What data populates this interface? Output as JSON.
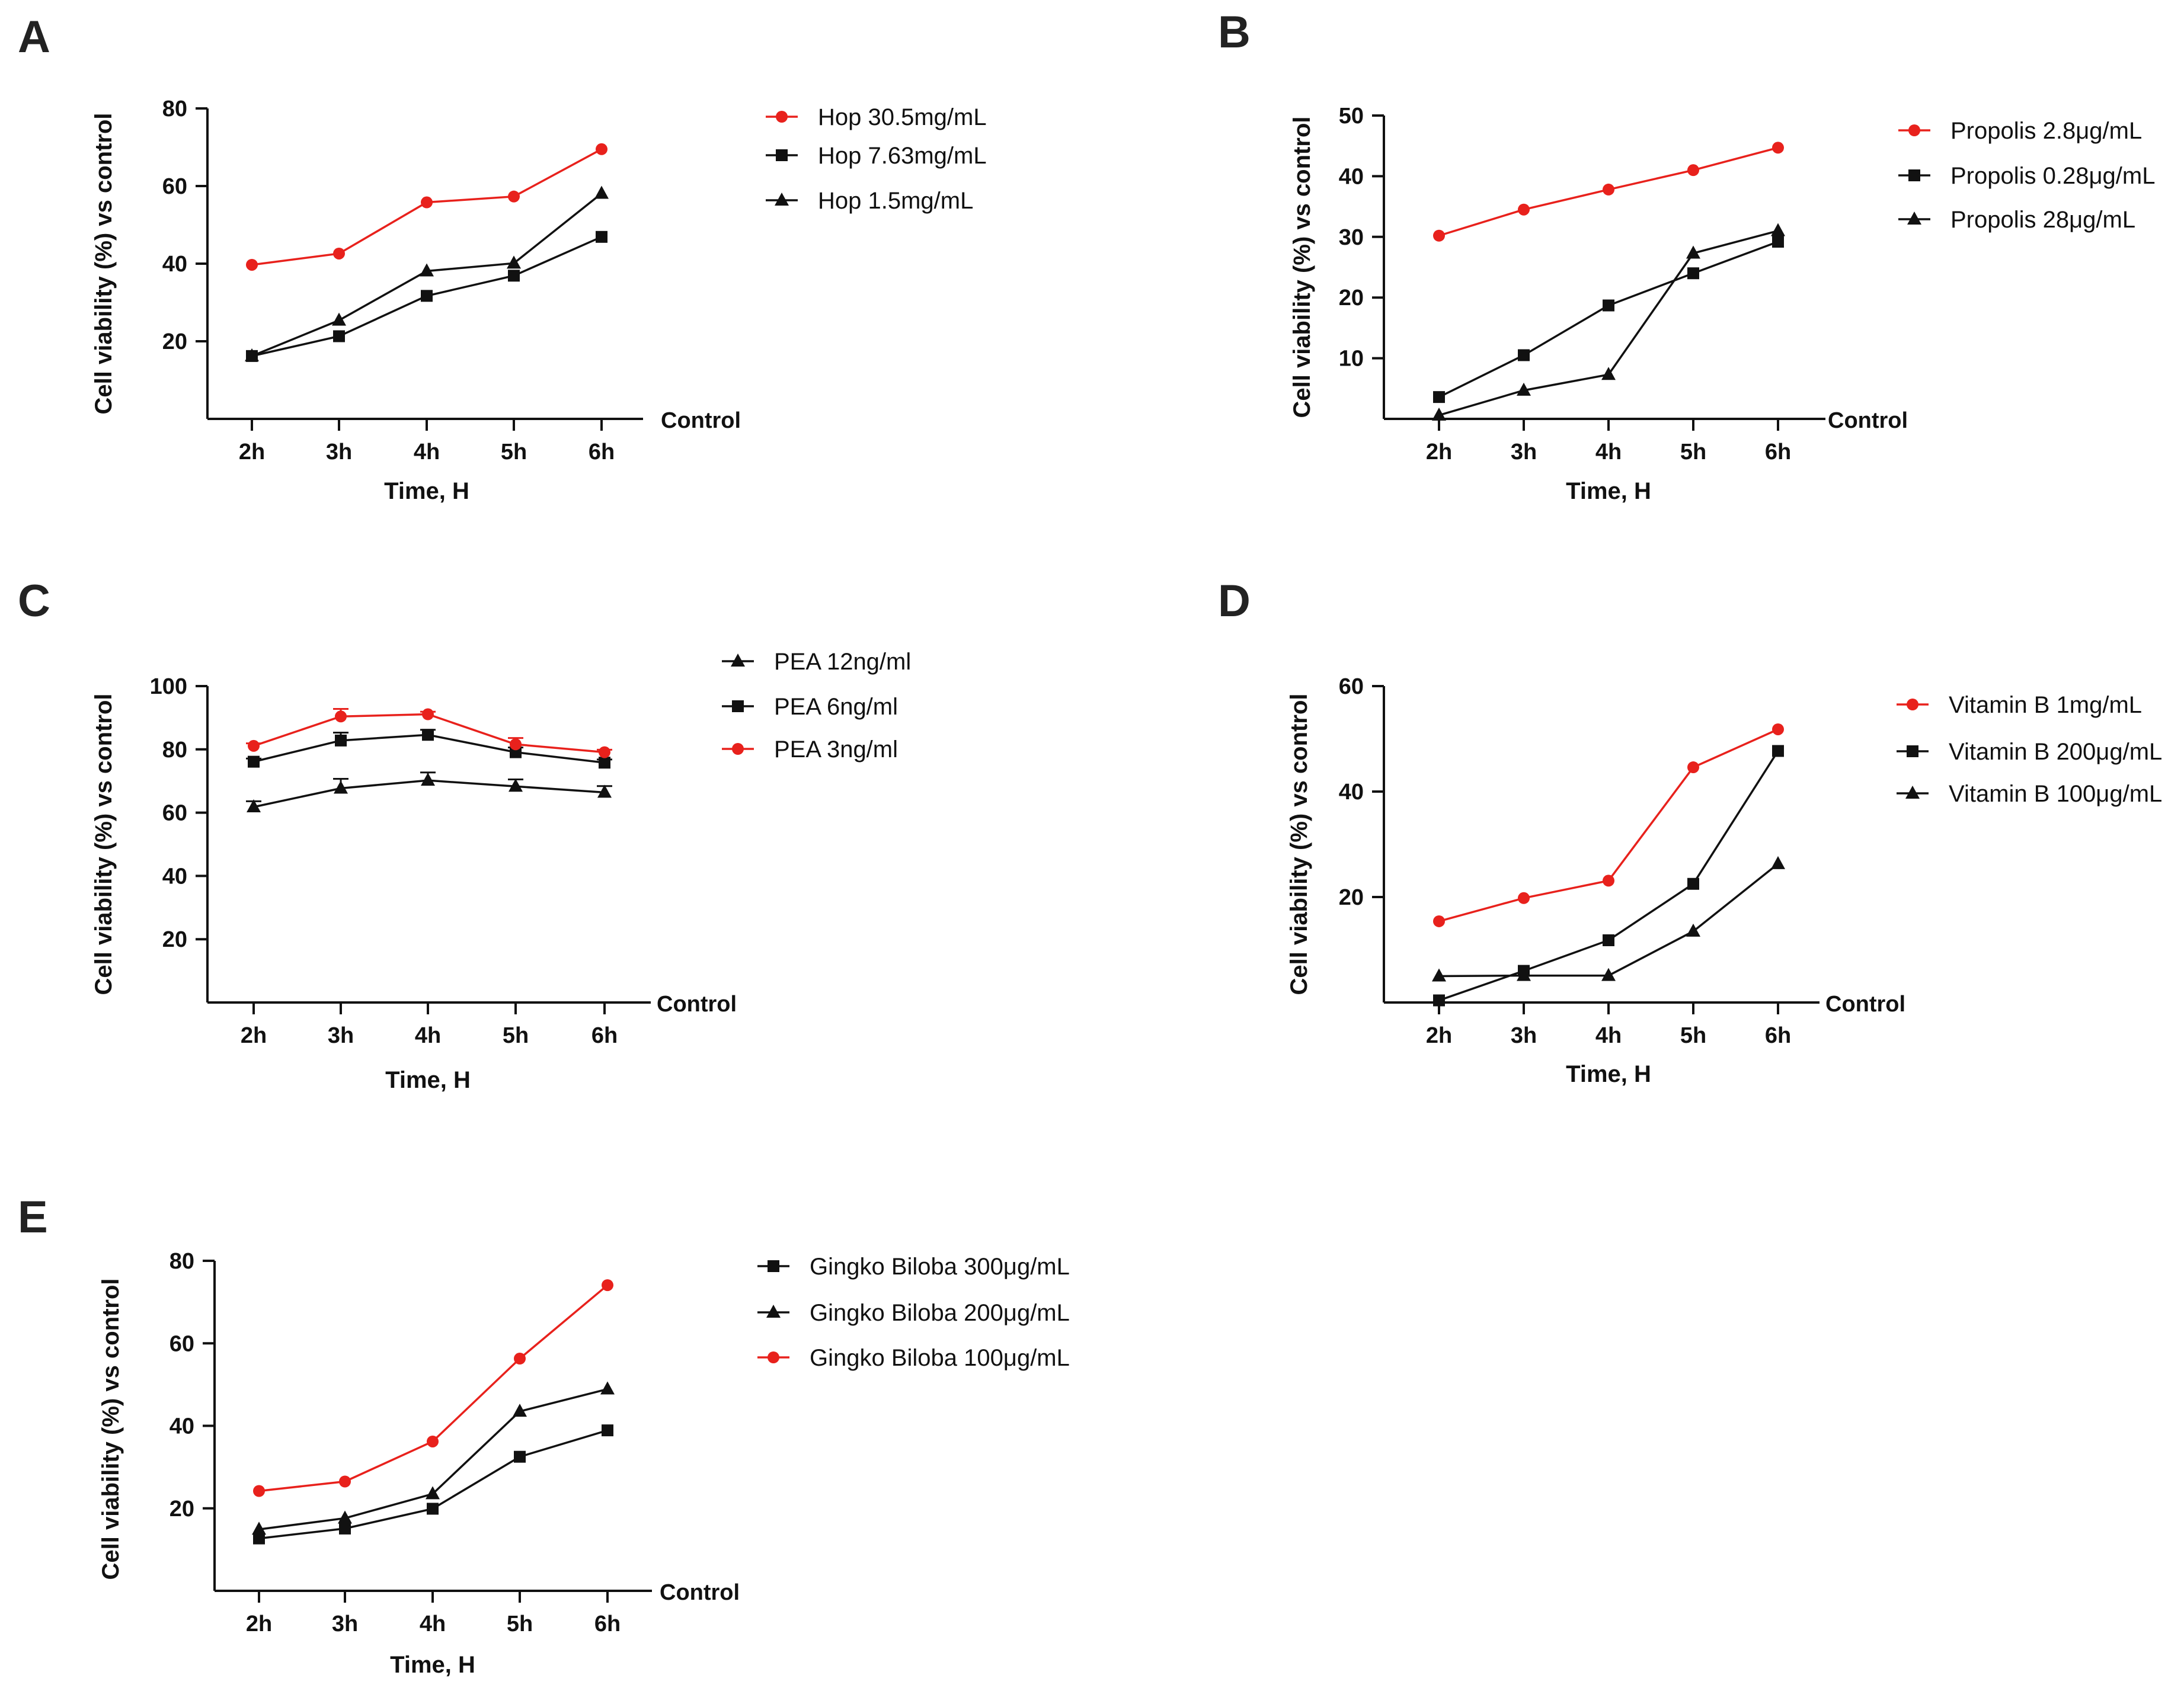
{
  "figure": {
    "panels": [
      "A",
      "B",
      "C",
      "D",
      "E"
    ]
  },
  "chart_data": [
    {
      "panel": "A",
      "type": "line",
      "xlabel": "Time, H",
      "ylabel": "Cell viability (%) vs control",
      "baseline_label": "Control",
      "categories": [
        "2h",
        "3h",
        "4h",
        "5h",
        "6h"
      ],
      "ylim": [
        0,
        80
      ],
      "yticks": [
        20,
        40,
        60,
        80
      ],
      "series": [
        {
          "name": "Hop 30.5mg/mL",
          "marker": "circle",
          "color": "#e8211c",
          "values": [
            39.7,
            42.6,
            55.8,
            57.3,
            69.5
          ]
        },
        {
          "name": "Hop 7.63mg/mL",
          "marker": "square",
          "color": "#111111",
          "values": [
            16.2,
            21.3,
            31.7,
            36.9,
            46.9
          ]
        },
        {
          "name": "Hop 1.5mg/mL",
          "marker": "triangle",
          "color": "#111111",
          "values": [
            16.2,
            25.4,
            38.1,
            40.1,
            58.1
          ]
        }
      ]
    },
    {
      "panel": "B",
      "type": "line",
      "xlabel": "Time, H",
      "ylabel": "Cell viability (%) vs control",
      "baseline_label": "Control",
      "categories": [
        "2h",
        "3h",
        "4h",
        "5h",
        "6h"
      ],
      "ylim": [
        0,
        50
      ],
      "yticks": [
        10,
        20,
        30,
        40,
        50
      ],
      "series": [
        {
          "name": "Propolis 2.8μg/mL",
          "marker": "circle",
          "color": "#e8211c",
          "values": [
            30.2,
            34.5,
            37.8,
            41.0,
            44.7
          ]
        },
        {
          "name": "Propolis 0.28μg/mL",
          "marker": "square",
          "color": "#111111",
          "values": [
            3.6,
            10.5,
            18.7,
            24.0,
            29.2
          ]
        },
        {
          "name": "Propolis 28μg/mL",
          "marker": "triangle",
          "color": "#111111",
          "values": [
            0.6,
            4.7,
            7.3,
            27.3,
            31.0
          ]
        }
      ]
    },
    {
      "panel": "C",
      "type": "line",
      "xlabel": "Time, H",
      "ylabel": "Cell viability (%) vs control",
      "baseline_label": "Control",
      "categories": [
        "2h",
        "3h",
        "4h",
        "5h",
        "6h"
      ],
      "ylim": [
        0,
        100
      ],
      "yticks": [
        20,
        40,
        60,
        80,
        100
      ],
      "series": [
        {
          "name": "PEA 12ng/ml",
          "marker": "triangle",
          "color": "#111111",
          "values": [
            61.8,
            67.7,
            70.2,
            68.3,
            66.4
          ],
          "errors": [
            1.8,
            3.0,
            2.5,
            2.2,
            2.0
          ]
        },
        {
          "name": "PEA  6ng/ml",
          "marker": "square",
          "color": "#111111",
          "values": [
            76.1,
            82.8,
            84.6,
            79.1,
            75.8
          ],
          "errors": [
            1.0,
            2.5,
            1.6,
            1.5,
            1.0
          ]
        },
        {
          "name": "PEA  3ng/ml",
          "marker": "circle",
          "color": "#e8211c",
          "values": [
            81.1,
            90.4,
            91.1,
            81.6,
            79.1
          ],
          "errors": [
            0.8,
            2.4,
            0.8,
            2.0,
            0.8
          ]
        }
      ]
    },
    {
      "panel": "D",
      "type": "line",
      "xlabel": "Time, H",
      "ylabel": "Cell viability (%) vs control",
      "baseline_label": "Control",
      "categories": [
        "2h",
        "3h",
        "4h",
        "5h",
        "6h"
      ],
      "ylim": [
        0,
        60
      ],
      "yticks": [
        20,
        40,
        60
      ],
      "series": [
        {
          "name": "Vitamin B 1mg/mL",
          "marker": "circle",
          "color": "#e8211c",
          "values": [
            15.4,
            19.8,
            23.1,
            44.6,
            51.8
          ]
        },
        {
          "name": "Vitamin B 200μg/mL",
          "marker": "square",
          "color": "#111111",
          "values": [
            0.4,
            6.0,
            11.8,
            22.5,
            47.7
          ]
        },
        {
          "name": "Vitamin B 100μg/mL",
          "marker": "triangle",
          "color": "#111111",
          "values": [
            5.0,
            5.1,
            5.1,
            13.5,
            26.3
          ]
        }
      ]
    },
    {
      "panel": "E",
      "type": "line",
      "xlabel": "Time, H",
      "ylabel": "Cell viability (%) vs control",
      "baseline_label": "Control",
      "categories": [
        "2h",
        "3h",
        "4h",
        "5h",
        "6h"
      ],
      "ylim": [
        0,
        80
      ],
      "yticks": [
        20,
        40,
        60,
        80
      ],
      "series": [
        {
          "name": "Gingko Biloba 300μg/mL",
          "marker": "square",
          "color": "#111111",
          "values": [
            12.7,
            15.1,
            19.9,
            32.5,
            38.9
          ]
        },
        {
          "name": "Gingko Biloba 200μg/mL",
          "marker": "triangle",
          "color": "#111111",
          "values": [
            14.9,
            17.6,
            23.5,
            43.5,
            48.9
          ]
        },
        {
          "name": "Gingko Biloba 100μg/mL",
          "marker": "circle",
          "color": "#e8211c",
          "values": [
            24.2,
            26.5,
            36.2,
            56.3,
            74.1
          ]
        }
      ]
    }
  ]
}
